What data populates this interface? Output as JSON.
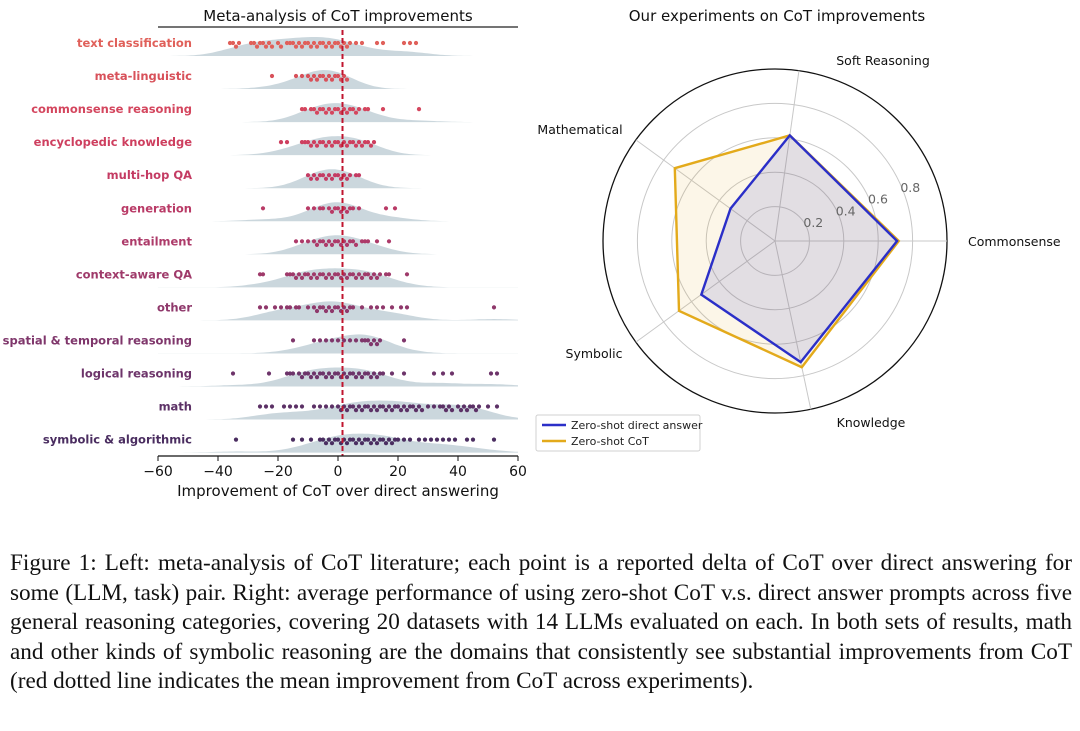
{
  "chart_data": [
    {
      "type": "scatter",
      "title": "Meta-analysis of CoT improvements",
      "xlabel": "Improvement of CoT over direct answering",
      "ylabel": "",
      "xlim": [
        -60,
        60
      ],
      "x_ticks": [
        "−60",
        "−40",
        "−20",
        "0",
        "20",
        "40",
        "60"
      ],
      "x_tick_values": [
        -60,
        -40,
        -20,
        0,
        20,
        40,
        60
      ],
      "mean_line_x": 1.5,
      "mean_line_color": "#c0152f",
      "distribution_fill": "#b9c9d1",
      "categories": [
        {
          "label": "text classification",
          "color": "#e0605a",
          "points": [
            -36,
            -35,
            -34,
            -33,
            -29,
            -28,
            -27,
            -26,
            -25,
            -24,
            -23,
            -22,
            -20,
            -19,
            -17,
            -16,
            -15,
            -14,
            -13,
            -12,
            -11,
            -10,
            -9,
            -8,
            -7,
            -6,
            -5,
            -4,
            -3,
            -2,
            -1,
            0,
            1,
            2,
            3,
            4,
            6,
            8,
            13,
            15,
            22,
            24,
            26
          ]
        },
        {
          "label": "meta-linguistic",
          "color": "#d8515a",
          "points": [
            -22,
            -14,
            -12,
            -10,
            -9,
            -8,
            -7,
            -6,
            -5,
            -4,
            -3,
            -2,
            -1,
            0,
            1,
            2,
            3
          ]
        },
        {
          "label": "commonsense reasoning",
          "color": "#d4465e",
          "points": [
            -12,
            -11,
            -9,
            -8,
            -7,
            -6,
            -5,
            -4,
            -3,
            -2,
            -1,
            0,
            1,
            2,
            3,
            4,
            5,
            6,
            7,
            9,
            10,
            15,
            27
          ]
        },
        {
          "label": "encyclopedic knowledge",
          "color": "#ce3f5f",
          "points": [
            -19,
            -17,
            -12,
            -11,
            -10,
            -9,
            -8,
            -7,
            -6,
            -5,
            -4,
            -3,
            -2,
            -1,
            0,
            1,
            2,
            3,
            4,
            5,
            6,
            7,
            8,
            9,
            10,
            11,
            12
          ]
        },
        {
          "label": "multi-hop QA",
          "color": "#c43b63",
          "points": [
            -10,
            -9,
            -8,
            -7,
            -6,
            -5,
            -4,
            -3,
            -2,
            -1,
            0,
            1,
            2,
            3,
            4,
            6,
            7
          ]
        },
        {
          "label": "generation",
          "color": "#b93a66",
          "points": [
            -25,
            -10,
            -8,
            -6,
            -5,
            -3,
            -2,
            -1,
            0,
            1,
            2,
            3,
            4,
            5,
            7,
            16,
            19
          ]
        },
        {
          "label": "entailment",
          "color": "#ad3a69",
          "points": [
            -14,
            -12,
            -10,
            -8,
            -7,
            -6,
            -5,
            -4,
            -3,
            -2,
            -1,
            0,
            1,
            2,
            3,
            4,
            5,
            6,
            8,
            9,
            10,
            13,
            17
          ]
        },
        {
          "label": "context-aware QA",
          "color": "#9f3a6a",
          "points": [
            -26,
            -25,
            -17,
            -16,
            -15,
            -14,
            -13,
            -12,
            -11,
            -10,
            -9,
            -8,
            -7,
            -6,
            -5,
            -4,
            -3,
            -2,
            -1,
            0,
            1,
            2,
            3,
            4,
            5,
            6,
            7,
            8,
            9,
            10,
            11,
            12,
            13,
            14,
            16,
            17,
            23
          ]
        },
        {
          "label": "other",
          "color": "#8f386b",
          "points": [
            -26,
            -24,
            -21,
            -19,
            -17,
            -16,
            -14,
            -13,
            -10,
            -8,
            -7,
            -6,
            -5,
            -4,
            -3,
            -2,
            -1,
            0,
            1,
            2,
            3,
            4,
            5,
            8,
            11,
            13,
            15,
            18,
            21,
            23,
            52
          ]
        },
        {
          "label": "spatial & temporal reasoning",
          "color": "#7f366b",
          "points": [
            -15,
            -8,
            -6,
            -4,
            -2,
            0,
            2,
            4,
            6,
            8,
            9,
            10,
            11,
            12,
            13,
            14,
            22
          ]
        },
        {
          "label": "logical reasoning",
          "color": "#6d346a",
          "points": [
            -35,
            -23,
            -17,
            -16,
            -15,
            -13,
            -12,
            -11,
            -10,
            -9,
            -8,
            -7,
            -6,
            -5,
            -4,
            -3,
            -2,
            -1,
            0,
            1,
            2,
            3,
            4,
            5,
            6,
            7,
            8,
            9,
            10,
            11,
            12,
            13,
            14,
            15,
            18,
            22,
            32,
            35,
            38,
            51,
            53
          ]
        },
        {
          "label": "math",
          "color": "#5c3166",
          "points": [
            -26,
            -24,
            -22,
            -18,
            -16,
            -14,
            -12,
            -8,
            -6,
            -4,
            -2,
            0,
            1,
            2,
            3,
            4,
            5,
            6,
            7,
            8,
            9,
            10,
            11,
            12,
            13,
            14,
            15,
            16,
            17,
            18,
            19,
            20,
            21,
            22,
            23,
            24,
            25,
            26,
            27,
            28,
            30,
            32,
            34,
            35,
            36,
            37,
            38,
            40,
            41,
            42,
            43,
            44,
            45,
            46,
            47,
            50,
            53
          ]
        },
        {
          "label": "symbolic & algorithmic",
          "color": "#4a2d60",
          "points": [
            -34,
            -15,
            -12,
            -9,
            -6,
            -5,
            -4,
            -3,
            -2,
            -1,
            0,
            1,
            2,
            3,
            4,
            5,
            6,
            7,
            8,
            9,
            10,
            11,
            12,
            13,
            14,
            15,
            16,
            17,
            18,
            19,
            20,
            22,
            24,
            27,
            29,
            31,
            33,
            35,
            37,
            39,
            43,
            45,
            52
          ]
        }
      ]
    },
    {
      "type": "radar",
      "title": "Our experiments on CoT improvements",
      "axes": [
        "Commonsense",
        "Soft Reasoning",
        "Mathematical",
        "Symbolic",
        "Knowledge"
      ],
      "r_ticks": [
        0.2,
        0.4,
        0.6,
        0.8
      ],
      "r_tick_labels": [
        "0.2",
        "0.4",
        "0.6",
        "0.8"
      ],
      "rlim": [
        0,
        1.0
      ],
      "legend_position": "bottom-left",
      "series": [
        {
          "name": "Zero-shot direct answer",
          "color": "#2b2fc8",
          "values": [
            0.71,
            0.62,
            0.32,
            0.53,
            0.72
          ]
        },
        {
          "name": "Zero-shot CoT",
          "color": "#e3aa1b",
          "values": [
            0.72,
            0.62,
            0.72,
            0.69,
            0.75
          ]
        }
      ]
    }
  ],
  "caption": {
    "text": "Figure 1: Left: meta-analysis of CoT literature; each point is a reported delta of CoT over direct answering for some (LLM, task) pair. Right: average performance of using zero-shot CoT v.s. direct answer prompts across five general reasoning categories, covering 20 datasets with 14 LLMs evaluated on each. In both sets of results, math and other kinds of symbolic reasoning are the domains that consistently see substantial improvements from CoT (red dotted line indicates the mean improvement from CoT across experiments)."
  }
}
